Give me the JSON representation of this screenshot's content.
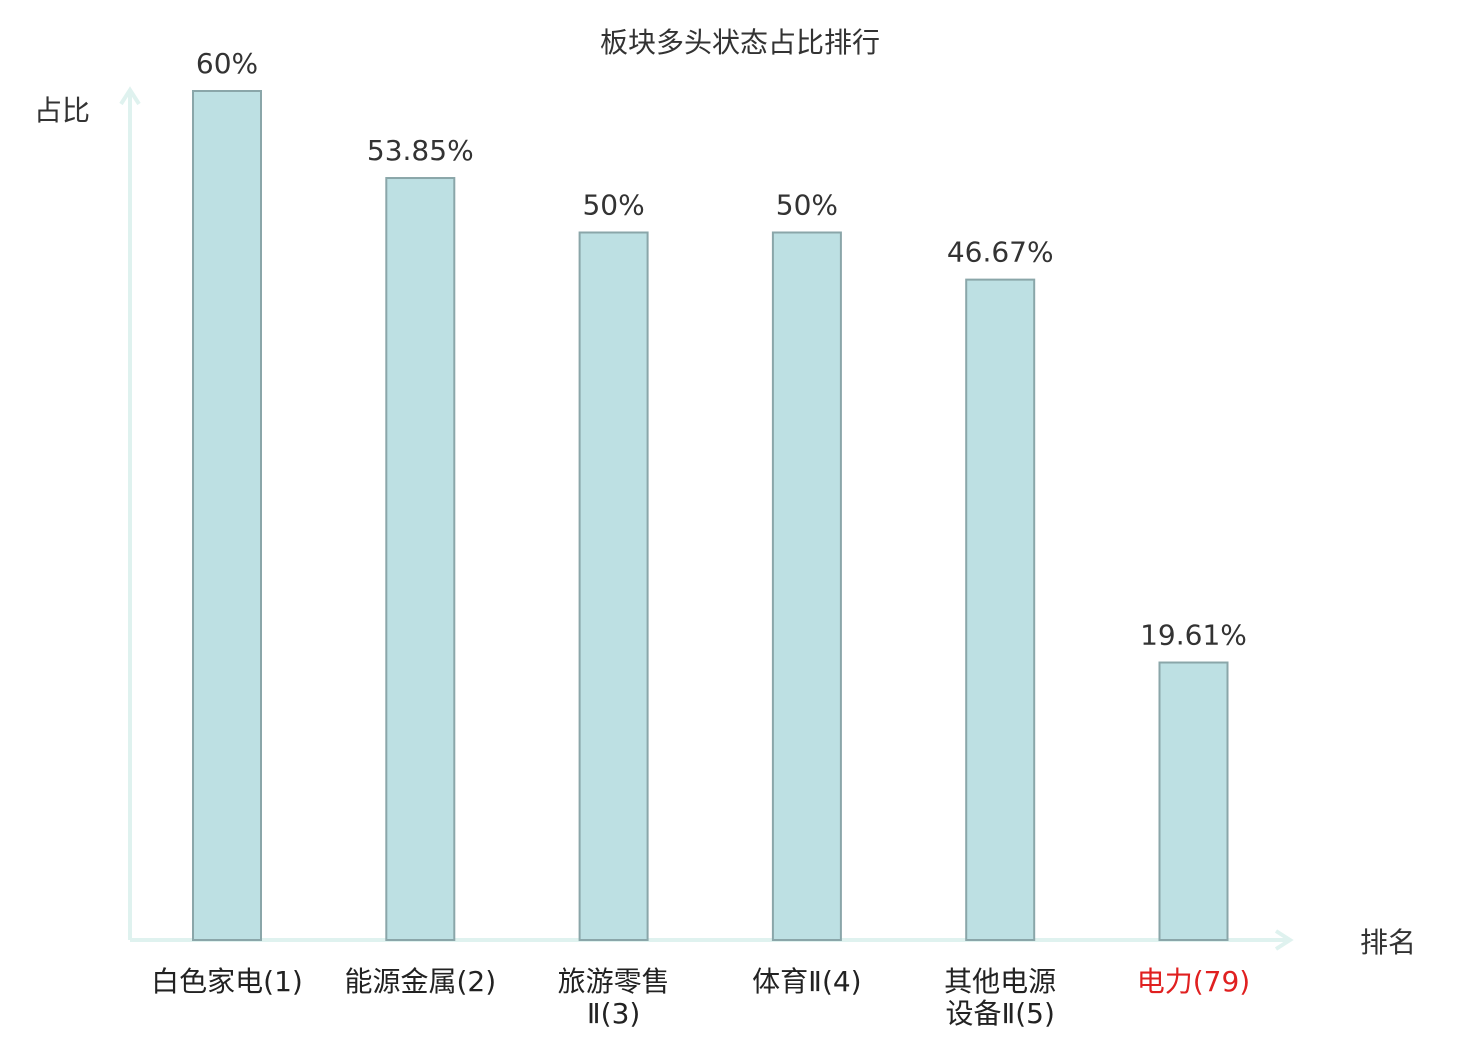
{
  "chart_data": {
    "type": "bar",
    "title": "板块多头状态占比排行",
    "y_label": "占比",
    "x_label": "排名",
    "categories": [
      "白色家电(1)",
      "能源金属(2)",
      "旅游零售\nⅡ(3)",
      "体育Ⅱ(4)",
      "其他电源\n设备Ⅱ(5)",
      "电力(79)"
    ],
    "values": [
      60,
      53.85,
      50,
      50,
      46.67,
      19.61
    ],
    "value_labels": [
      "60%",
      "53.85%",
      "50%",
      "50%",
      "46.67%",
      "19.61%"
    ],
    "color": "#bde0e3",
    "edge_color": "#8aa6a9",
    "axis_color": "#dff2ef",
    "category_label_colors": [
      "#222222",
      "#222222",
      "#222222",
      "#222222",
      "#222222",
      "#e02020"
    ],
    "ylim": [
      0,
      60
    ]
  }
}
